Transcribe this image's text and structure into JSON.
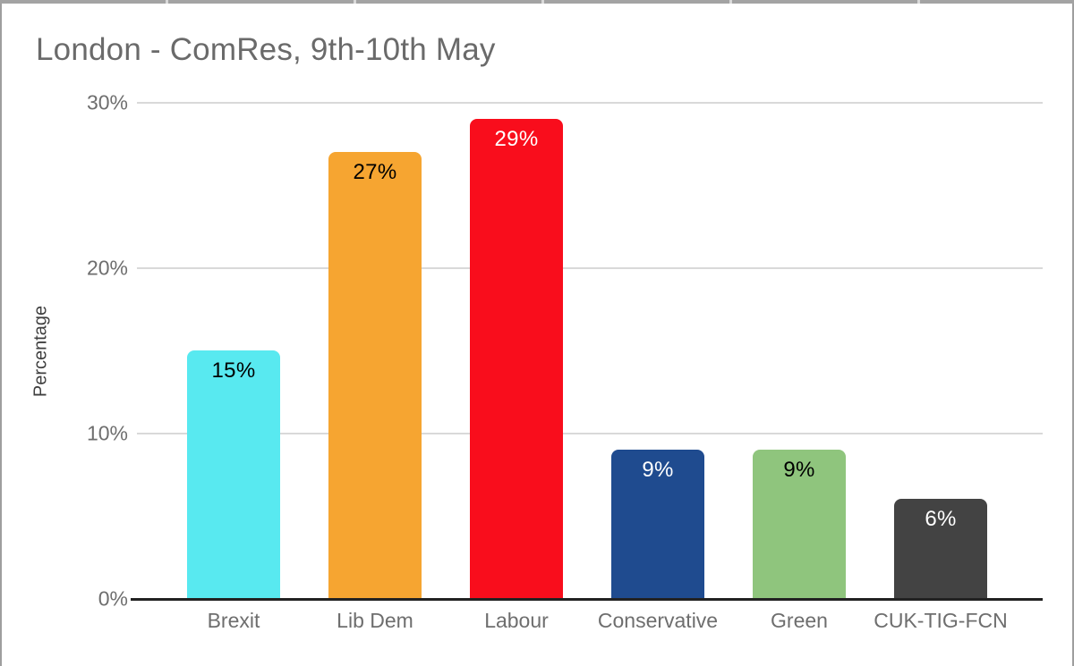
{
  "chart_data": {
    "type": "bar",
    "title": "London - ComRes, 9th-10th May",
    "xlabel": "",
    "ylabel": "Percentage",
    "categories": [
      "Brexit",
      "Lib Dem",
      "Labour",
      "Conservative",
      "Green",
      "CUK-TIG-FCN"
    ],
    "values": [
      15,
      27,
      29,
      9,
      9,
      6
    ],
    "value_labels": [
      "15%",
      "27%",
      "29%",
      "9%",
      "9%",
      "6%"
    ],
    "bar_colors": [
      "#58E9F0",
      "#F6A531",
      "#F90D1C",
      "#1F4B8F",
      "#8FC57D",
      "#434343"
    ],
    "value_label_colors": [
      "#000000",
      "#000000",
      "#FFFFFF",
      "#FFFFFF",
      "#000000",
      "#FFFFFF"
    ],
    "ytick_labels": [
      "30%",
      "20%",
      "10%",
      "0%"
    ],
    "ytick_values": [
      30,
      20,
      10,
      0
    ],
    "ylim": [
      0,
      30
    ],
    "grid": true,
    "legend": "none",
    "colors": {
      "grid": "#d9d9d9",
      "baseline": "#222222",
      "axis_text": "#6e6e6e",
      "title_text": "#6a6a6a",
      "frame_edge": "#a3a3a3"
    }
  }
}
